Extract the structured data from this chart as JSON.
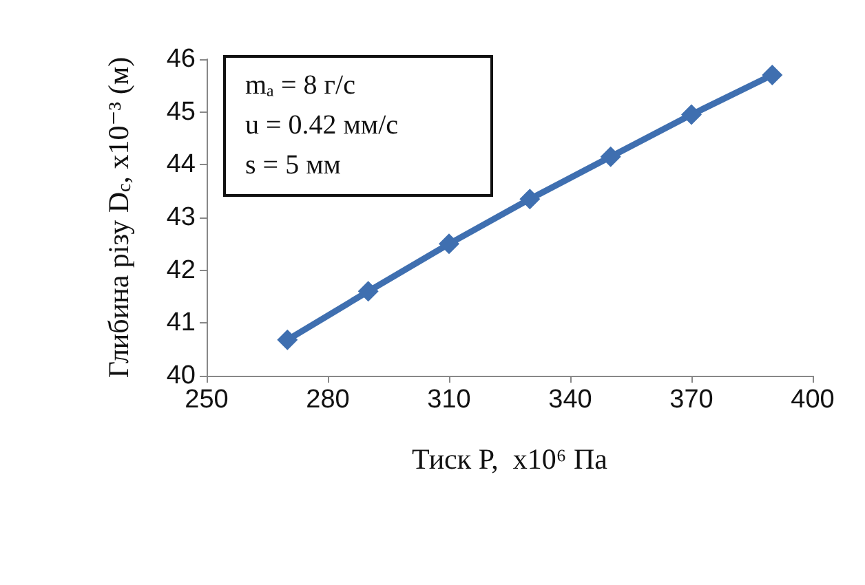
{
  "chart_data": {
    "type": "line",
    "xlabel": "Тиск P,  x10⁶ Па",
    "ylabel": "Глибина різу D$_{c}$, x10⁻³ (м)",
    "annotations": [
      "mₐ = 8 г/с",
      "u = 0.42 мм/с",
      "s = 5 мм"
    ],
    "x": [
      270,
      290,
      310,
      330,
      350,
      370,
      390
    ],
    "series": [
      {
        "color": "#3f6fb0",
        "values": [
          40.68,
          41.6,
          42.5,
          43.35,
          44.15,
          44.95,
          45.7
        ]
      }
    ],
    "xlim": [
      250,
      400
    ],
    "xticks": [
      250,
      280,
      310,
      340,
      370,
      400
    ],
    "ylim": [
      40,
      46
    ],
    "yticks": [
      40,
      41,
      42,
      43,
      44,
      45,
      46
    ],
    "grid": false,
    "marker": "diamond",
    "line_style": "solid"
  }
}
